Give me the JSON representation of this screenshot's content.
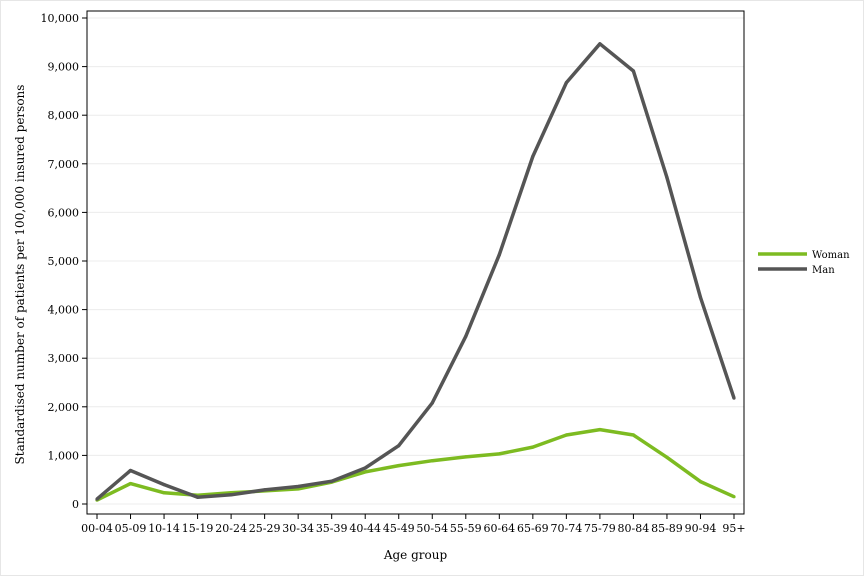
{
  "chart_data": {
    "type": "line",
    "title": "",
    "xlabel": "Age group",
    "ylabel": "Standardised number of patients per 100,000 insured persons",
    "categories": [
      "00-04",
      "05-09",
      "10-14",
      "15-19",
      "20-24",
      "25-29",
      "30-34",
      "35-39",
      "40-44",
      "45-49",
      "50-54",
      "55-59",
      "60-64",
      "65-69",
      "70-74",
      "75-79",
      "80-84",
      "85-89",
      "90-94",
      "95+"
    ],
    "ylim": [
      0,
      10000
    ],
    "yticks": [
      0,
      1000,
      2000,
      3000,
      4000,
      5000,
      6000,
      7000,
      8000,
      9000,
      10000
    ],
    "ytick_labels": [
      "0",
      "1,000",
      "2,000",
      "3,000",
      "4,000",
      "5,000",
      "6,000",
      "7,000",
      "8,000",
      "9,000",
      "10,000"
    ],
    "grid": true,
    "legend_position": "right",
    "series": [
      {
        "name": "Woman",
        "color": "#7dbb21",
        "values": [
          80,
          420,
          230,
          180,
          230,
          270,
          310,
          450,
          660,
          790,
          890,
          970,
          1030,
          1170,
          1420,
          1530,
          1420,
          960,
          460,
          150
        ]
      },
      {
        "name": "Man",
        "color": "#555555",
        "values": [
          100,
          690,
          400,
          140,
          190,
          290,
          360,
          470,
          740,
          1200,
          2080,
          3450,
          5130,
          7150,
          8670,
          9470,
          8910,
          6720,
          4250,
          2180
        ]
      }
    ]
  }
}
